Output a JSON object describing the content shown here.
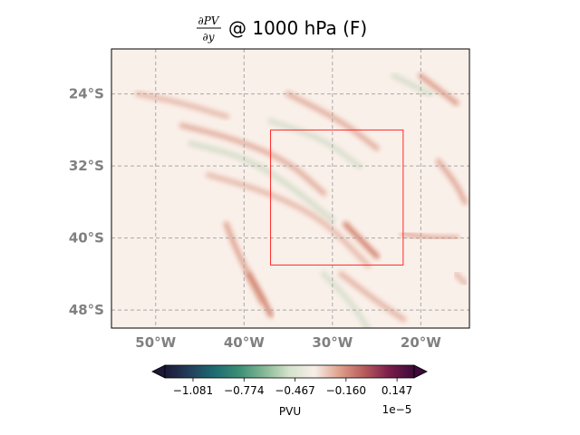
{
  "chart_data": {
    "type": "heatmap",
    "title": {
      "numerator": "∂PV",
      "denominator": "∂y",
      "suffix": "@ 1000 hPa (F)"
    },
    "xlim": [
      -55,
      -14.5
    ],
    "ylim": [
      -50,
      -19
    ],
    "x_ticks": [
      {
        "value": -50,
        "label": "50°W"
      },
      {
        "value": -40,
        "label": "40°W"
      },
      {
        "value": -30,
        "label": "30°W"
      },
      {
        "value": -20,
        "label": "20°W"
      }
    ],
    "y_ticks": [
      {
        "value": -24,
        "label": "24°S"
      },
      {
        "value": -32,
        "label": "32°S"
      },
      {
        "value": -40,
        "label": "40°S"
      },
      {
        "value": -48,
        "label": "48°S"
      }
    ],
    "grid": true,
    "box": {
      "lon_min": -37,
      "lon_max": -22,
      "lat_min": -43,
      "lat_max": -28,
      "color": "#ff2a2a"
    },
    "colorbar": {
      "label": "PVU",
      "scale_label": "1e−5",
      "extend": "both",
      "min": -1.25,
      "max": 0.25,
      "ticks": [
        {
          "value": -1.081,
          "label": "−1.081"
        },
        {
          "value": -0.774,
          "label": "−0.774"
        },
        {
          "value": -0.467,
          "label": "−0.467"
        },
        {
          "value": -0.16,
          "label": "−0.160"
        },
        {
          "value": 0.147,
          "label": "0.147"
        }
      ],
      "colors": [
        "#1c1937",
        "#223f5c",
        "#1c6c72",
        "#3d8f76",
        "#86b996",
        "#d6e3cc",
        "#f7efe8",
        "#dfa08c",
        "#b75a5c",
        "#7a1e4b",
        "#3d0a3a"
      ]
    },
    "features": [
      {
        "kind": "positive",
        "intensity": 0.35,
        "path": [
          [
            -52,
            -24
          ],
          [
            -47,
            -25
          ],
          [
            -42,
            -26.5
          ]
        ]
      },
      {
        "kind": "positive",
        "intensity": 0.45,
        "path": [
          [
            -47,
            -27.5
          ],
          [
            -41,
            -29
          ],
          [
            -35,
            -31.5
          ],
          [
            -31,
            -35
          ]
        ]
      },
      {
        "kind": "negative",
        "intensity": 0.35,
        "path": [
          [
            -46,
            -29.5
          ],
          [
            -40,
            -31
          ],
          [
            -35,
            -34
          ],
          [
            -30,
            -38
          ]
        ]
      },
      {
        "kind": "positive",
        "intensity": 0.35,
        "path": [
          [
            -44,
            -33
          ],
          [
            -37,
            -35
          ],
          [
            -31,
            -38
          ],
          [
            -26,
            -43
          ]
        ]
      },
      {
        "kind": "positive",
        "intensity": 0.55,
        "path": [
          [
            -42,
            -38.5
          ],
          [
            -41,
            -41
          ],
          [
            -39.5,
            -44
          ],
          [
            -38,
            -47
          ]
        ]
      },
      {
        "kind": "positive",
        "intensity": 0.85,
        "path": [
          [
            -39.5,
            -44
          ],
          [
            -38,
            -46.5
          ],
          [
            -37,
            -48.5
          ]
        ]
      },
      {
        "kind": "positive",
        "intensity": 0.9,
        "path": [
          [
            -28.5,
            -38.5
          ],
          [
            -27,
            -40
          ],
          [
            -25,
            -42
          ]
        ]
      },
      {
        "kind": "positive",
        "intensity": 0.6,
        "path": [
          [
            -20,
            -22
          ],
          [
            -18,
            -23.5
          ],
          [
            -16,
            -25
          ]
        ]
      },
      {
        "kind": "negative",
        "intensity": 0.35,
        "path": [
          [
            -23,
            -22
          ],
          [
            -21,
            -23
          ],
          [
            -19,
            -24
          ]
        ]
      },
      {
        "kind": "positive",
        "intensity": 0.5,
        "path": [
          [
            -18,
            -31.5
          ],
          [
            -16,
            -34
          ],
          [
            -15,
            -36
          ]
        ]
      },
      {
        "kind": "positive",
        "intensity": 0.45,
        "path": [
          [
            -35,
            -24
          ],
          [
            -29,
            -27
          ],
          [
            -25,
            -30
          ]
        ]
      },
      {
        "kind": "negative",
        "intensity": 0.3,
        "path": [
          [
            -37,
            -27
          ],
          [
            -31,
            -29
          ],
          [
            -27,
            -32
          ]
        ]
      },
      {
        "kind": "positive",
        "intensity": 0.4,
        "path": [
          [
            -29,
            -44
          ],
          [
            -25,
            -47
          ],
          [
            -22,
            -49
          ]
        ]
      },
      {
        "kind": "negative",
        "intensity": 0.3,
        "path": [
          [
            -31,
            -44
          ],
          [
            -28,
            -47
          ],
          [
            -26,
            -50
          ]
        ]
      },
      {
        "kind": "positive",
        "intensity": 0.35,
        "path": [
          [
            -16,
            -44
          ],
          [
            -15,
            -45
          ]
        ]
      },
      {
        "kind": "positive",
        "intensity": 0.45,
        "path": [
          [
            -22,
            -39.5
          ],
          [
            -19,
            -40
          ],
          [
            -16,
            -40
          ]
        ]
      }
    ]
  }
}
